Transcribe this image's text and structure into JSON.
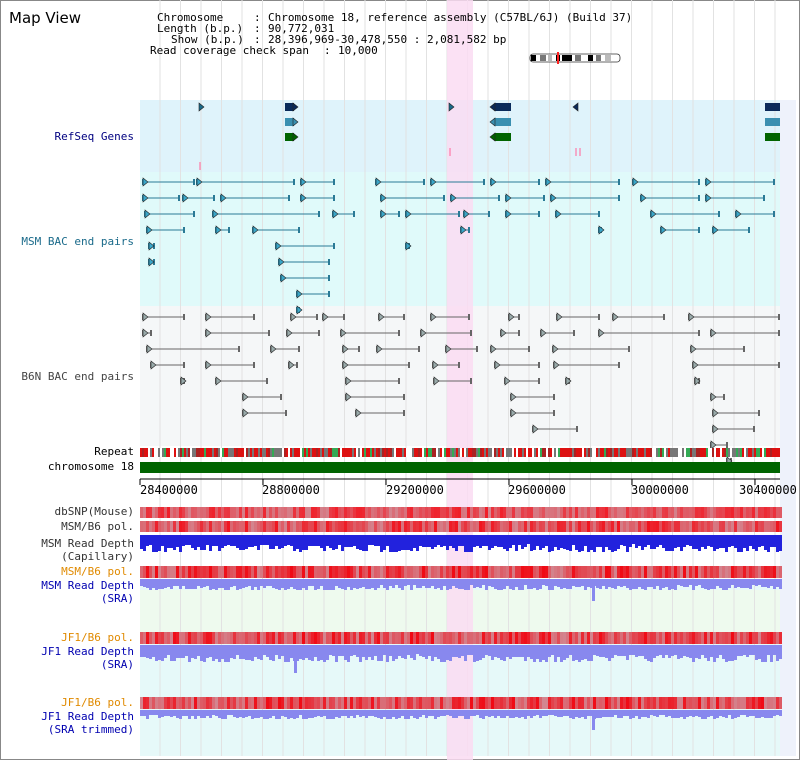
{
  "header": {
    "title": "Map View",
    "chromosome_key": "Chromosome",
    "chromosome_value": "Chromosome 18, reference assembly (C57BL/6J) (Build 37)",
    "length_key": "Length (b.p.)",
    "length_value": "90,772,031",
    "show_key": "Show (b.p.)",
    "show_value": "28,396,969-30,478,550 : 2,081,582 bp",
    "coverage_key": "Read coverage check span",
    "coverage_value": "10,000"
  },
  "tracks": {
    "refseq": "RefSeq Genes",
    "msm_bac": "MSM BAC end pairs",
    "b6n_bac": "B6N BAC end pairs",
    "repeat": "Repeat",
    "chromosome": "chromosome 18",
    "dbsnp": "dbSNP(Mouse)",
    "msm_b6_pol": "MSM/B6 pol.",
    "msm_depth_cap_1": "MSM Read Depth",
    "msm_depth_cap_2": "(Capillary)",
    "msm_b6_pol_2": "MSM/B6 pol.",
    "msm_depth_sra_1": "MSM Read Depth",
    "msm_depth_sra_2": "(SRA)",
    "jf1_b6_pol": "JF1/B6 pol.",
    "jf1_depth_sra_1": "JF1 Read Depth",
    "jf1_depth_sra_2": "(SRA)",
    "jf1_b6_pol_2": "JF1/B6 pol.",
    "jf1_depth_trim_1": "JF1 Read Depth",
    "jf1_depth_trim_2": "(SRA trimmed)"
  },
  "axis": {
    "ticks": [
      "28400000",
      "28800000",
      "29200000",
      "29600000",
      "30000000",
      "30400000"
    ]
  },
  "colors": {
    "refseq_bg": "#dff3fb",
    "bac_bg": "#e0fafa",
    "b6n_bg": "#f5f7f8",
    "highlight": "#fadcf2",
    "chromosome_bar": "#006400",
    "teal": "#2a7a96",
    "gray": "#666666",
    "depth_blue": "#2222dd",
    "depth_light": "#8888ee"
  }
}
